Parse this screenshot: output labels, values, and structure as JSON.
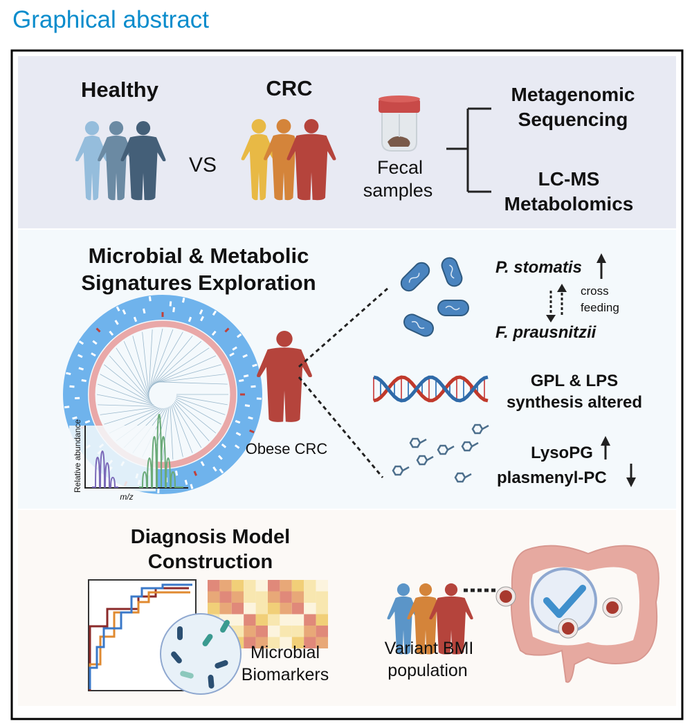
{
  "header": {
    "title": "Graphical abstract"
  },
  "colors": {
    "title": "#0a8ccc",
    "panel_top": "#e8eaf3",
    "panel_middle": "#f4f9fc",
    "panel_bottom": "#fcf9f6",
    "healthy": [
      "#95bddc",
      "#6b8aa3",
      "#445f78"
    ],
    "crc": [
      "#e8b945",
      "#d4843a",
      "#b5443c"
    ],
    "obese": "#b5443c",
    "bacteria": "#4a84bf",
    "roc": [
      "#8b2a2a",
      "#e08a30",
      "#3a78c8"
    ]
  },
  "study": {
    "healthy_label": "Healthy",
    "crc_label": "CRC",
    "vs_label": "VS",
    "sample_label": [
      "Fecal",
      "samples"
    ],
    "methods": [
      [
        "Metagenomic",
        "Sequencing"
      ],
      [
        "LC-MS",
        "Metabolomics"
      ]
    ]
  },
  "signatures": {
    "title": [
      "Microbial & Metabolic",
      "Signatures Exploration"
    ],
    "spectrum_ylabel": "Relative abundance",
    "spectrum_xlabel": "m/z",
    "subject_label": "Obese CRC",
    "taxa": {
      "up": "P. stomatis",
      "down": "F. prausnitzii",
      "relation": [
        "cross",
        "feeding"
      ]
    },
    "pathways": [
      "GPL & LPS",
      "synthesis altered"
    ],
    "metabolites": {
      "up": "LysoPG",
      "down": "plasmenyl-PC"
    },
    "icons": [
      "bacteria-icon",
      "dna-icon",
      "molecule-icon",
      "arrow-up-icon",
      "arrow-down-icon"
    ]
  },
  "diagnosis": {
    "title": [
      "Diagnosis Model",
      "Construction"
    ],
    "biomarkers_label": [
      "Microbial",
      "Biomarkers"
    ],
    "population_label": [
      "Variant BMI",
      "population"
    ],
    "icons": [
      "roc-curve-icon",
      "heatmap-icon",
      "microbe-lens-icon",
      "colon-icon",
      "check-icon"
    ]
  }
}
